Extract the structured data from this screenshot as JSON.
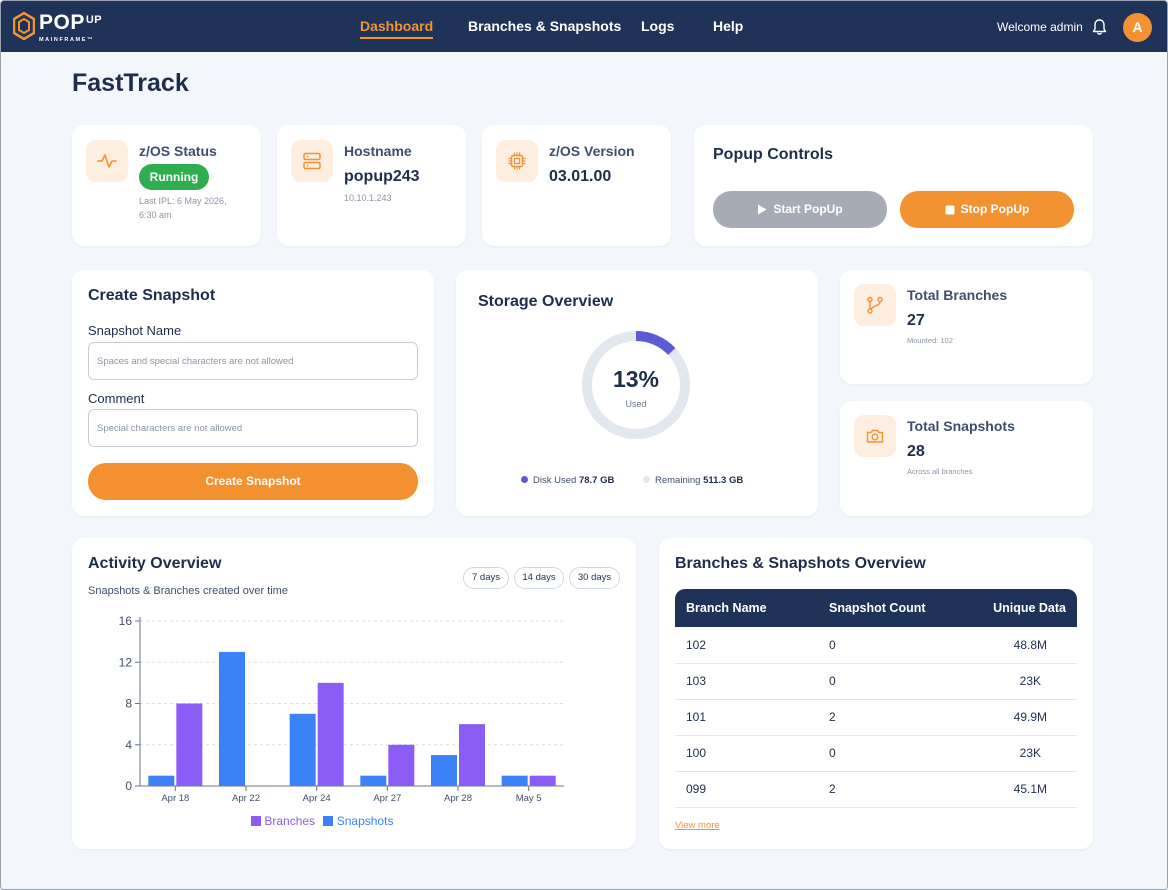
{
  "app": {
    "logo_text": "POP",
    "logo_superscript": "UP",
    "logo_subtext": "MAINFRAME™"
  },
  "nav": {
    "items": [
      "Dashboard",
      "Branches & Snapshots",
      "Logs",
      "Help"
    ],
    "active": "Dashboard"
  },
  "user": {
    "welcome": "Welcome admin",
    "avatar_initial": "A"
  },
  "page": {
    "title": "FastTrack"
  },
  "status_cards": {
    "zos_status": {
      "label": "z/OS Status",
      "badge": "Running",
      "sub_line1": "Last IPL: 6 May 2026,",
      "sub_line2": "6:30 am"
    },
    "hostname": {
      "label": "Hostname",
      "value": "popup243",
      "sub": "10.10.1.243"
    },
    "zos_version": {
      "label": "z/OS Version",
      "value": "03.01.00"
    }
  },
  "popup_controls": {
    "title": "Popup Controls",
    "start_label": "Start PopUp",
    "stop_label": "Stop PopUp"
  },
  "create_snapshot": {
    "title": "Create Snapshot",
    "name_label": "Snapshot Name",
    "name_placeholder": "Spaces and special characters are not allowed",
    "comment_label": "Comment",
    "comment_placeholder": "Special characters are not allowed",
    "button_label": "Create Snapshot"
  },
  "storage": {
    "title": "Storage Overview",
    "percent_text": "13%",
    "percent_value": 13,
    "used_label": "Used",
    "disk_used_label": "Disk Used",
    "disk_used_value": "78.7 GB",
    "remaining_label": "Remaining",
    "remaining_value": "511.3 GB",
    "colors": {
      "used": "#5b5bd6",
      "remaining": "#e3e7ee"
    }
  },
  "totals": {
    "branches": {
      "label": "Total Branches",
      "value": "27",
      "sub": "Mounted: 102"
    },
    "snapshots": {
      "label": "Total Snapshots",
      "value": "28",
      "sub": "Across all branches"
    }
  },
  "activity": {
    "title": "Activity Overview",
    "subtitle": "Snapshots & Branches created over time",
    "ranges": [
      "7 days",
      "14 days",
      "30 days"
    ]
  },
  "chart_data": {
    "type": "bar",
    "categories": [
      "Apr 18",
      "Apr 22",
      "Apr 24",
      "Apr 27",
      "Apr 28",
      "May 5"
    ],
    "series": [
      {
        "name": "Snapshots",
        "values": [
          1,
          13,
          7,
          1,
          3,
          1
        ],
        "color": "#3b82f6"
      },
      {
        "name": "Branches",
        "values": [
          8,
          0,
          10,
          4,
          6,
          1
        ],
        "color": "#8b5cf6"
      }
    ],
    "y_ticks": [
      0,
      4,
      8,
      12,
      16
    ],
    "ylim": [
      0,
      16
    ],
    "grid": true,
    "legend_position": "bottom"
  },
  "branches_table": {
    "title": "Branches & Snapshots Overview",
    "columns": [
      "Branch Name",
      "Snapshot Count",
      "Unique Data"
    ],
    "rows": [
      [
        "102",
        "0",
        "48.8M"
      ],
      [
        "103",
        "0",
        "23K"
      ],
      [
        "101",
        "2",
        "49.9M"
      ],
      [
        "100",
        "0",
        "23K"
      ],
      [
        "099",
        "2",
        "45.1M"
      ]
    ],
    "view_more": "View more"
  },
  "icons": {
    "bell": "bell-icon",
    "status": "activity-pulse-icon",
    "hostname": "server-icon",
    "version": "cpu-chip-icon",
    "branches": "git-branch-icon",
    "snapshots": "camera-icon",
    "start": "play-icon",
    "stop": "stop-square-icon"
  }
}
